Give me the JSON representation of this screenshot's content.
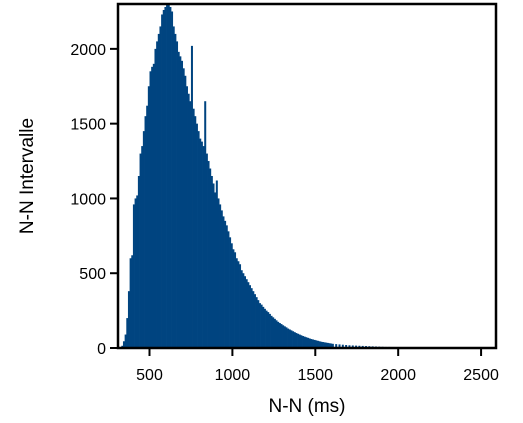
{
  "chart_data": {
    "type": "bar",
    "title": "",
    "xlabel": "N-N (ms)",
    "ylabel": "N-N Intervalle",
    "xlim": [
      310,
      2590
    ],
    "ylim": [
      0,
      2300
    ],
    "xticks": [
      500,
      1000,
      1500,
      2000,
      2500
    ],
    "yticks": [
      0,
      500,
      1000,
      1500,
      2000
    ],
    "bar_color": "#004480",
    "bin_width": 10,
    "bins": [
      [
        330,
        15
      ],
      [
        340,
        45
      ],
      [
        350,
        90
      ],
      [
        360,
        200
      ],
      [
        370,
        380
      ],
      [
        380,
        600
      ],
      [
        390,
        620
      ],
      [
        400,
        960
      ],
      [
        410,
        1000
      ],
      [
        420,
        1020
      ],
      [
        430,
        1150
      ],
      [
        440,
        1300
      ],
      [
        450,
        1350
      ],
      [
        460,
        1450
      ],
      [
        470,
        1550
      ],
      [
        480,
        1620
      ],
      [
        490,
        1750
      ],
      [
        500,
        1850
      ],
      [
        510,
        1880
      ],
      [
        520,
        1900
      ],
      [
        530,
        2000
      ],
      [
        540,
        2050
      ],
      [
        550,
        2100
      ],
      [
        560,
        2150
      ],
      [
        570,
        2230
      ],
      [
        580,
        2260
      ],
      [
        590,
        2280
      ],
      [
        600,
        2300
      ],
      [
        610,
        2300
      ],
      [
        620,
        2280
      ],
      [
        630,
        2250
      ],
      [
        640,
        2150
      ],
      [
        650,
        2100
      ],
      [
        660,
        2050
      ],
      [
        670,
        1980
      ],
      [
        680,
        1950
      ],
      [
        690,
        1920
      ],
      [
        700,
        1870
      ],
      [
        710,
        1820
      ],
      [
        720,
        1750
      ],
      [
        730,
        1700
      ],
      [
        740,
        1650
      ],
      [
        750,
        2020
      ],
      [
        760,
        1600
      ],
      [
        770,
        1550
      ],
      [
        780,
        1500
      ],
      [
        790,
        1450
      ],
      [
        800,
        1400
      ],
      [
        810,
        1380
      ],
      [
        820,
        1350
      ],
      [
        830,
        1650
      ],
      [
        840,
        1300
      ],
      [
        850,
        1250
      ],
      [
        860,
        1200
      ],
      [
        870,
        1150
      ],
      [
        880,
        1100
      ],
      [
        890,
        1040
      ],
      [
        900,
        1120
      ],
      [
        910,
        1000
      ],
      [
        920,
        960
      ],
      [
        930,
        920
      ],
      [
        940,
        880
      ],
      [
        950,
        850
      ],
      [
        960,
        820
      ],
      [
        970,
        780
      ],
      [
        980,
        740
      ],
      [
        990,
        700
      ],
      [
        1000,
        660
      ],
      [
        1010,
        640
      ],
      [
        1020,
        600
      ],
      [
        1030,
        580
      ],
      [
        1040,
        560
      ],
      [
        1050,
        520
      ],
      [
        1060,
        500
      ],
      [
        1070,
        480
      ],
      [
        1080,
        460
      ],
      [
        1090,
        440
      ],
      [
        1100,
        420
      ],
      [
        1110,
        400
      ],
      [
        1120,
        380
      ],
      [
        1130,
        360
      ],
      [
        1140,
        340
      ],
      [
        1150,
        320
      ],
      [
        1160,
        300
      ],
      [
        1170,
        290
      ],
      [
        1180,
        275
      ],
      [
        1190,
        262
      ],
      [
        1200,
        250
      ],
      [
        1210,
        240
      ],
      [
        1220,
        228
      ],
      [
        1230,
        215
      ],
      [
        1240,
        205
      ],
      [
        1250,
        195
      ],
      [
        1260,
        185
      ],
      [
        1270,
        175
      ],
      [
        1280,
        167
      ],
      [
        1290,
        160
      ],
      [
        1300,
        152
      ],
      [
        1310,
        145
      ],
      [
        1320,
        138
      ],
      [
        1330,
        130
      ],
      [
        1340,
        124
      ],
      [
        1350,
        118
      ],
      [
        1360,
        112
      ],
      [
        1370,
        106
      ],
      [
        1380,
        100
      ],
      [
        1390,
        95
      ],
      [
        1400,
        90
      ],
      [
        1410,
        85
      ],
      [
        1420,
        80
      ],
      [
        1430,
        76
      ],
      [
        1440,
        72
      ],
      [
        1450,
        68
      ],
      [
        1460,
        64
      ],
      [
        1470,
        60
      ],
      [
        1480,
        57
      ],
      [
        1490,
        54
      ],
      [
        1500,
        51
      ],
      [
        1510,
        48
      ],
      [
        1520,
        45
      ],
      [
        1530,
        42
      ],
      [
        1540,
        40
      ],
      [
        1550,
        38
      ],
      [
        1560,
        36
      ],
      [
        1570,
        34
      ],
      [
        1580,
        32
      ],
      [
        1590,
        30
      ],
      [
        1600,
        28
      ],
      [
        1620,
        26
      ],
      [
        1640,
        24
      ],
      [
        1660,
        22
      ],
      [
        1680,
        20
      ],
      [
        1700,
        18
      ],
      [
        1720,
        17
      ],
      [
        1740,
        16
      ],
      [
        1760,
        15
      ],
      [
        1780,
        14
      ],
      [
        1800,
        13
      ],
      [
        1820,
        12
      ],
      [
        1840,
        11
      ],
      [
        1860,
        10
      ],
      [
        1880,
        9
      ],
      [
        1900,
        8
      ],
      [
        1920,
        7
      ],
      [
        1940,
        7
      ],
      [
        1960,
        6
      ],
      [
        1980,
        6
      ],
      [
        2000,
        5
      ],
      [
        2050,
        4
      ],
      [
        2100,
        4
      ],
      [
        2150,
        3
      ],
      [
        2200,
        3
      ],
      [
        2250,
        3
      ],
      [
        2300,
        2
      ],
      [
        2350,
        2
      ],
      [
        2400,
        2
      ],
      [
        2450,
        2
      ],
      [
        2500,
        1
      ]
    ]
  }
}
